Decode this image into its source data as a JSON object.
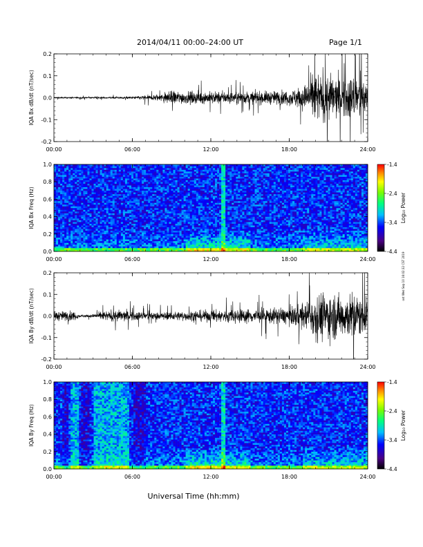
{
  "header": {
    "date_range": "2014/04/11   00:00–24:00 UT",
    "page": "Page 1/1"
  },
  "footer": {
    "xlabel": "Universal Time (hh:mm)",
    "stamp": "ost Wed Sep 10 16:02:32 CST 2019"
  },
  "colors": {
    "waveform": "#000000",
    "colorbar_stops": [
      "#000000",
      "#4b0082",
      "#0000ff",
      "#00bfff",
      "#00ff7f",
      "#7cfc00",
      "#ffff00",
      "#ff8c00",
      "#ff0000"
    ]
  },
  "chart_data": [
    {
      "type": "line",
      "ylabel": "IQA Bx dB/dt (nT/sec)",
      "xlim": [
        0,
        24
      ],
      "ylim": [
        -0.2,
        0.2
      ],
      "x_tick_labels": [
        "00:00",
        "06:00",
        "12:00",
        "18:00",
        "24:00"
      ],
      "y_tick_labels": [
        "0.2",
        "0.1",
        "0.0",
        "-0.1",
        "-0.2"
      ],
      "envelope": {
        "hours": [
          0,
          3,
          6,
          8,
          9,
          10,
          12,
          15,
          18,
          19.5,
          20,
          21,
          22,
          23,
          24
        ],
        "amplitude": [
          0.006,
          0.006,
          0.01,
          0.03,
          0.06,
          0.05,
          0.05,
          0.05,
          0.06,
          0.12,
          0.2,
          0.2,
          0.16,
          0.2,
          0.12
        ]
      }
    },
    {
      "type": "heatmap",
      "ylabel": "IQA Bx Freq (Hz)",
      "xlim": [
        0,
        24
      ],
      "ylim": [
        0,
        1.0
      ],
      "x_tick_labels": [
        "00:00",
        "06:00",
        "12:00",
        "18:00",
        "24:00"
      ],
      "y_tick_labels": [
        "1.0",
        "0.8",
        "0.6",
        "0.4",
        "0.2",
        "0.0"
      ],
      "colorbar": {
        "label": "Log₁₀ Power",
        "range": [
          -4.4,
          -1.4
        ],
        "tick_labels": [
          "-1.4",
          "-2.4",
          "-3.4",
          "-4.4"
        ]
      }
    },
    {
      "type": "line",
      "ylabel": "IQA By dB/dt (nT/sec)",
      "xlim": [
        0,
        24
      ],
      "ylim": [
        -0.2,
        0.2
      ],
      "x_tick_labels": [
        "00:00",
        "06:00",
        "12:00",
        "18:00",
        "24:00"
      ],
      "y_tick_labels": [
        "0.2",
        "0.1",
        "0.0",
        "-0.1",
        "-0.2"
      ],
      "envelope": {
        "hours": [
          0,
          1.5,
          2,
          3,
          4,
          5,
          6,
          8,
          10,
          12,
          15,
          18,
          19.5,
          20,
          21,
          22,
          23,
          24
        ],
        "amplitude": [
          0.04,
          0.04,
          0.01,
          0.015,
          0.04,
          0.05,
          0.04,
          0.03,
          0.04,
          0.05,
          0.06,
          0.07,
          0.12,
          0.2,
          0.2,
          0.18,
          0.2,
          0.13
        ]
      }
    },
    {
      "type": "heatmap",
      "ylabel": "IQA By Freq (Hz)",
      "xlim": [
        0,
        24
      ],
      "ylim": [
        0,
        1.0
      ],
      "x_tick_labels": [
        "00:00",
        "06:00",
        "12:00",
        "18:00",
        "24:00"
      ],
      "y_tick_labels": [
        "1.0",
        "0.8",
        "0.6",
        "0.4",
        "0.2",
        "0.0"
      ],
      "colorbar": {
        "label": "Log₁₀ Power",
        "range": [
          -4.4,
          -1.4
        ],
        "tick_labels": [
          "-1.4",
          "-2.4",
          "-3.4",
          "-4.4"
        ]
      }
    }
  ]
}
